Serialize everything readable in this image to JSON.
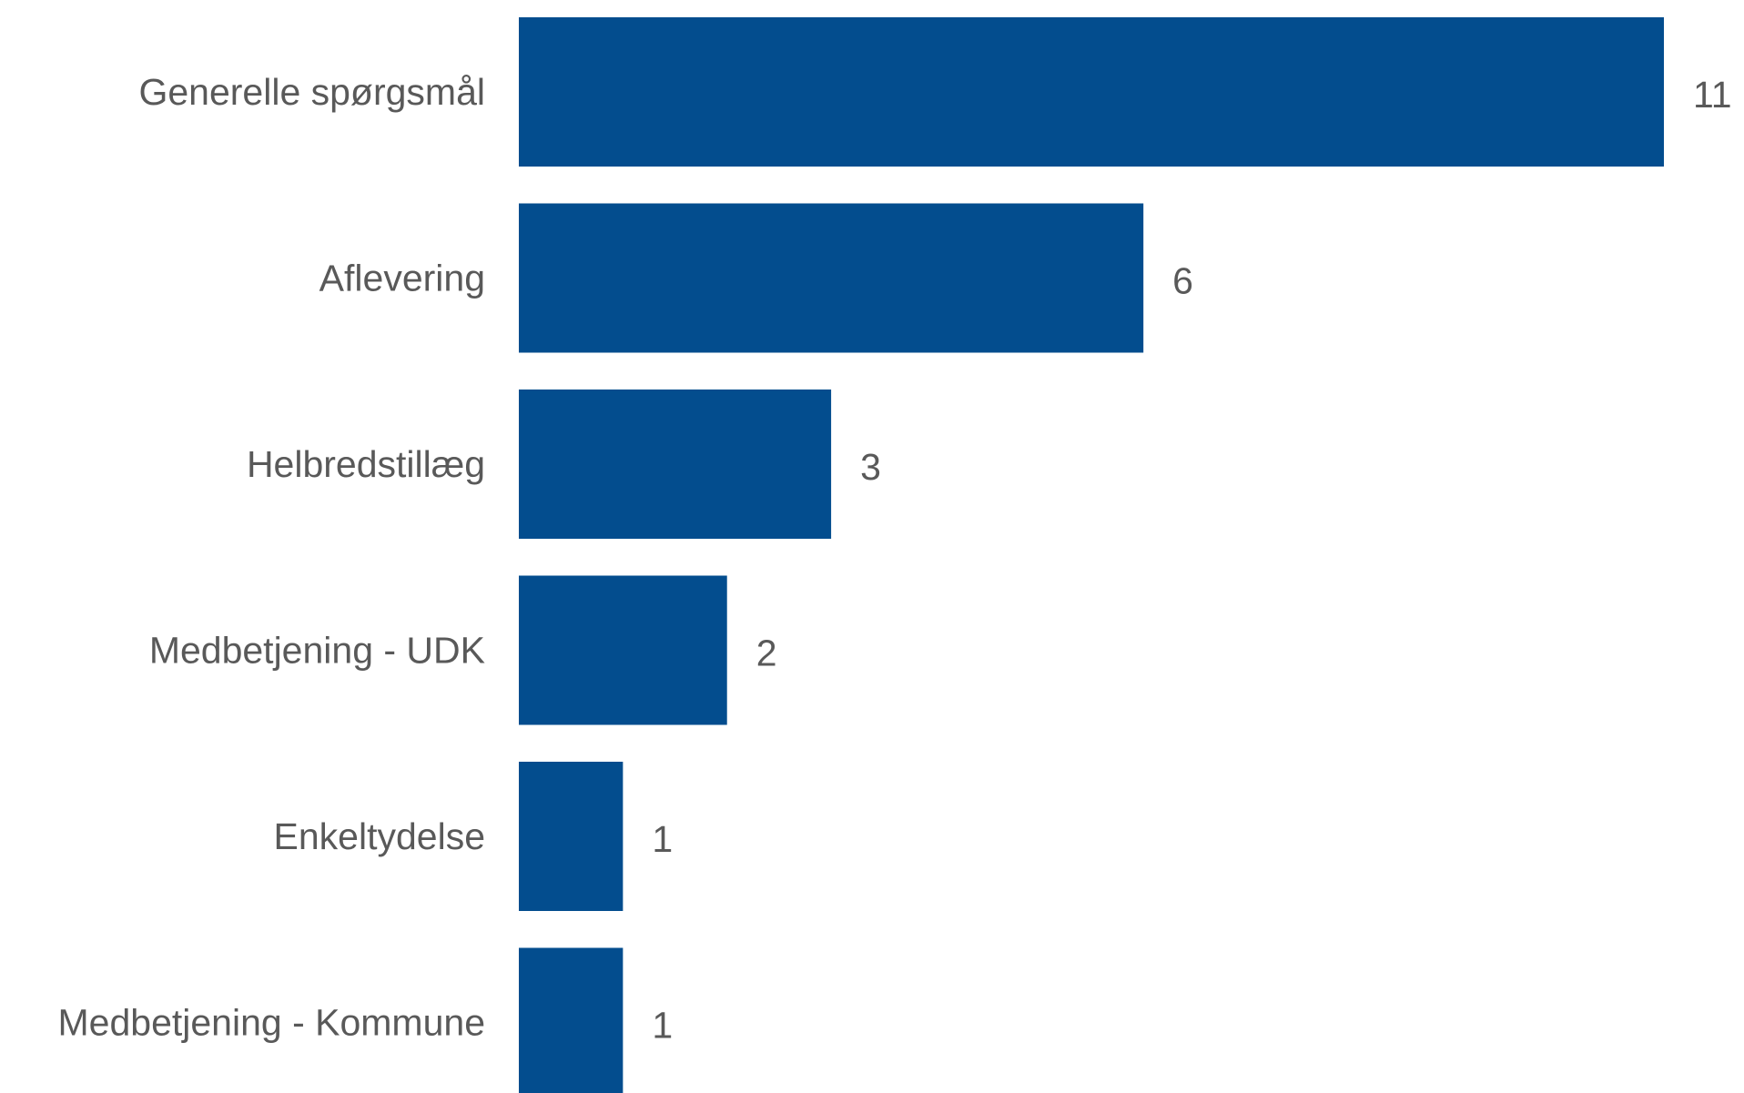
{
  "chart_data": {
    "type": "bar",
    "orientation": "horizontal",
    "categories": [
      "Generelle spørgsmål",
      "Aflevering",
      "Helbredstillæg",
      "Medbetjening - UDK",
      "Enkeltydelse",
      "Medbetjening - Kommune"
    ],
    "values": [
      11,
      6,
      3,
      2,
      1,
      1
    ],
    "data_labels": [
      "11",
      "6",
      "3",
      "2",
      "1",
      "1"
    ],
    "title": "",
    "xlabel": "",
    "ylabel": "",
    "xlim": [
      0,
      11
    ],
    "grid": false,
    "legend": "none",
    "bar_color": "#034D8E",
    "label_color": "#595959"
  }
}
